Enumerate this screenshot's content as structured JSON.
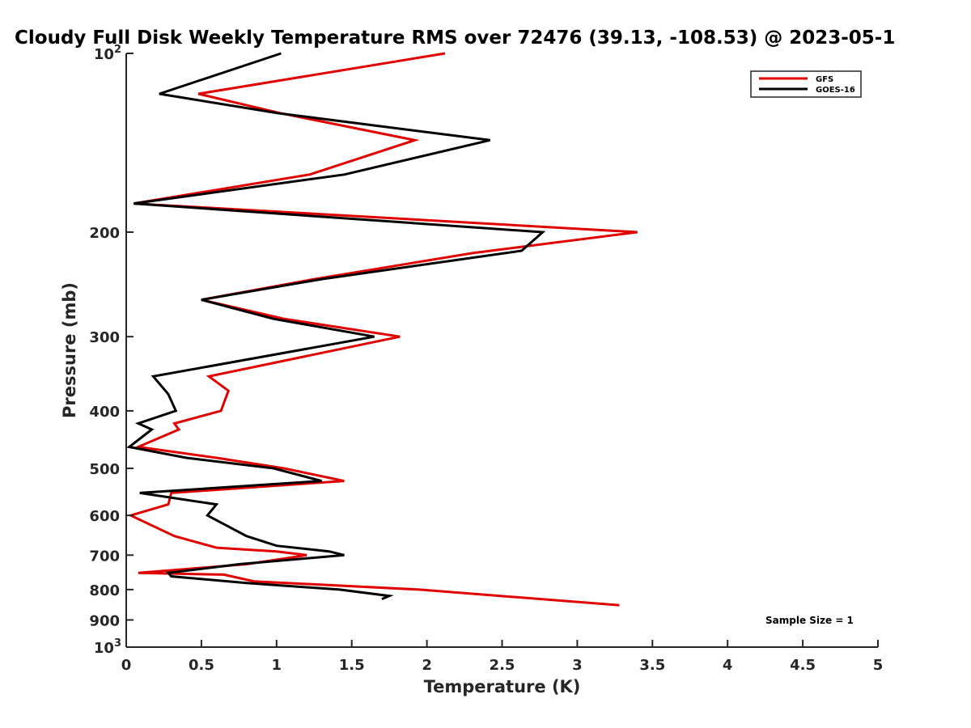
{
  "chart_data": {
    "type": "line",
    "title": "Cloudy Full Disk Weekly Temperature RMS over 72476 (39.13, -108.53) @ 2023-05-1",
    "xlabel": "Temperature (K)",
    "ylabel": "Pressure (mb)",
    "xlim": [
      0,
      5
    ],
    "ylim": [
      100,
      1000
    ],
    "y_scale": "log",
    "y_reversed": true,
    "grid": false,
    "legend_position": "top-right",
    "x_ticks": [
      "0",
      "0.5",
      "1",
      "1.5",
      "2",
      "2.5",
      "3",
      "3.5",
      "4",
      "4.5",
      "5"
    ],
    "y_ticks": [
      {
        "value": 100,
        "label": "10",
        "sup": "2"
      },
      {
        "value": 200,
        "label": "200",
        "sup": ""
      },
      {
        "value": 300,
        "label": "300",
        "sup": ""
      },
      {
        "value": 400,
        "label": "400",
        "sup": ""
      },
      {
        "value": 500,
        "label": "500",
        "sup": ""
      },
      {
        "value": 600,
        "label": "600",
        "sup": ""
      },
      {
        "value": 700,
        "label": "700",
        "sup": ""
      },
      {
        "value": 800,
        "label": "800",
        "sup": ""
      },
      {
        "value": 900,
        "label": "900",
        "sup": ""
      },
      {
        "value": 1000,
        "label": "10",
        "sup": "3"
      }
    ],
    "series": [
      {
        "name": "GFS",
        "color": "#e00000",
        "points": [
          [
            2.12,
            100
          ],
          [
            0.48,
            117
          ],
          [
            1.02,
            126
          ],
          [
            1.92,
            140
          ],
          [
            1.22,
            160
          ],
          [
            0.05,
            179
          ],
          [
            3.4,
            200
          ],
          [
            2.3,
            217
          ],
          [
            1.25,
            240
          ],
          [
            0.5,
            260
          ],
          [
            1.05,
            280
          ],
          [
            1.82,
            300
          ],
          [
            0.55,
            350
          ],
          [
            0.68,
            370
          ],
          [
            0.63,
            400
          ],
          [
            0.32,
            420
          ],
          [
            0.35,
            430
          ],
          [
            0.08,
            460
          ],
          [
            0.6,
            480
          ],
          [
            1.05,
            500
          ],
          [
            1.45,
            525
          ],
          [
            0.3,
            550
          ],
          [
            0.28,
            575
          ],
          [
            0.03,
            600
          ],
          [
            0.32,
            650
          ],
          [
            0.6,
            680
          ],
          [
            1.0,
            690
          ],
          [
            1.2,
            700
          ],
          [
            0.8,
            725
          ],
          [
            0.08,
            750
          ],
          [
            0.65,
            755
          ],
          [
            0.85,
            775
          ],
          [
            1.95,
            800
          ],
          [
            3.28,
            850
          ]
        ]
      },
      {
        "name": "GOES-16",
        "color": "#000000",
        "points": [
          [
            1.03,
            100
          ],
          [
            0.22,
            117
          ],
          [
            1.0,
            126
          ],
          [
            2.42,
            140
          ],
          [
            1.45,
            160
          ],
          [
            0.05,
            179
          ],
          [
            2.77,
            200
          ],
          [
            2.63,
            215
          ],
          [
            1.3,
            240
          ],
          [
            0.5,
            260
          ],
          [
            0.98,
            280
          ],
          [
            1.65,
            300
          ],
          [
            0.18,
            350
          ],
          [
            0.28,
            375
          ],
          [
            0.33,
            400
          ],
          [
            0.08,
            420
          ],
          [
            0.17,
            430
          ],
          [
            0.02,
            460
          ],
          [
            0.4,
            480
          ],
          [
            0.98,
            500
          ],
          [
            1.3,
            525
          ],
          [
            0.09,
            550
          ],
          [
            0.6,
            575
          ],
          [
            0.54,
            600
          ],
          [
            0.8,
            650
          ],
          [
            1.0,
            675
          ],
          [
            1.35,
            690
          ],
          [
            1.45,
            700
          ],
          [
            0.75,
            725
          ],
          [
            0.28,
            750
          ],
          [
            0.3,
            760
          ],
          [
            0.8,
            780
          ],
          [
            1.42,
            800
          ],
          [
            1.75,
            820
          ],
          [
            1.7,
            830
          ]
        ]
      }
    ],
    "annotations": [
      "Sample Size = 1"
    ]
  }
}
